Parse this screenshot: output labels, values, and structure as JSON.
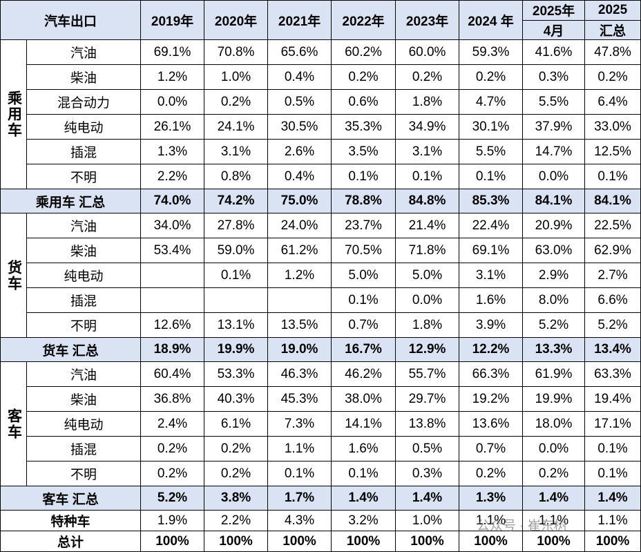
{
  "table": {
    "header": [
      "汽车出口",
      "2019年",
      "2020年",
      "2021年",
      "2022年",
      "2023年",
      "2024 年",
      [
        "2025年",
        "4月"
      ],
      [
        "2025",
        "汇总"
      ]
    ],
    "groups": [
      {
        "label": "乘用车",
        "rows": [
          {
            "name": "汽油",
            "values": [
              "69.1%",
              "70.8%",
              "65.6%",
              "60.2%",
              "60.0%",
              "59.3%",
              "41.6%",
              "47.8%"
            ]
          },
          {
            "name": "柴油",
            "values": [
              "1.2%",
              "1.0%",
              "0.4%",
              "0.2%",
              "0.2%",
              "0.2%",
              "0.3%",
              "0.2%"
            ]
          },
          {
            "name": "混合动力",
            "values": [
              "0.0%",
              "0.2%",
              "0.5%",
              "0.6%",
              "1.8%",
              "4.7%",
              "5.5%",
              "6.4%"
            ]
          },
          {
            "name": "纯电动",
            "values": [
              "26.1%",
              "24.1%",
              "30.5%",
              "35.3%",
              "34.9%",
              "30.1%",
              "37.9%",
              "33.0%"
            ]
          },
          {
            "name": "插混",
            "values": [
              "1.3%",
              "3.1%",
              "2.6%",
              "3.5%",
              "3.1%",
              "5.5%",
              "14.7%",
              "12.5%"
            ]
          },
          {
            "name": "不明",
            "values": [
              "2.2%",
              "0.8%",
              "0.4%",
              "0.1%",
              "0.1%",
              "0.1%",
              "0.0%",
              "0.1%"
            ]
          }
        ],
        "total": {
          "label": "乘用车 汇总",
          "values": [
            "74.0%",
            "74.2%",
            "75.0%",
            "78.8%",
            "84.8%",
            "85.3%",
            "84.1%",
            "84.1%"
          ]
        }
      },
      {
        "label": "货车",
        "rows": [
          {
            "name": "汽油",
            "values": [
              "34.0%",
              "27.8%",
              "24.0%",
              "23.7%",
              "21.4%",
              "22.4%",
              "20.9%",
              "22.5%"
            ]
          },
          {
            "name": "柴油",
            "values": [
              "53.4%",
              "59.0%",
              "61.2%",
              "70.5%",
              "71.8%",
              "69.1%",
              "63.0%",
              "62.9%"
            ]
          },
          {
            "name": "纯电动",
            "values": [
              null,
              "0.1%",
              "1.2%",
              "5.0%",
              "5.0%",
              "3.1%",
              "2.9%",
              "2.7%"
            ]
          },
          {
            "name": "插混",
            "values": [
              null,
              null,
              null,
              "0.1%",
              "0.0%",
              "1.6%",
              "8.0%",
              "6.6%"
            ]
          },
          {
            "name": "不明",
            "values": [
              "12.6%",
              "13.1%",
              "13.5%",
              "0.7%",
              "1.8%",
              "3.9%",
              "5.2%",
              "5.2%"
            ]
          }
        ],
        "total": {
          "label": "货车 汇总",
          "values": [
            "18.9%",
            "19.9%",
            "19.0%",
            "16.7%",
            "12.9%",
            "12.2%",
            "13.3%",
            "13.4%"
          ]
        }
      },
      {
        "label": "客车",
        "rows": [
          {
            "name": "汽油",
            "values": [
              "60.4%",
              "53.3%",
              "46.3%",
              "46.2%",
              "55.7%",
              "66.3%",
              "61.9%",
              "63.3%"
            ]
          },
          {
            "name": "柴油",
            "values": [
              "36.8%",
              "40.3%",
              "45.3%",
              "38.0%",
              "29.7%",
              "19.2%",
              "19.9%",
              "19.4%"
            ]
          },
          {
            "name": "纯电动",
            "values": [
              "2.4%",
              "6.1%",
              "7.3%",
              "14.1%",
              "13.8%",
              "13.6%",
              "18.0%",
              "17.1%"
            ]
          },
          {
            "name": "插混",
            "values": [
              "0.2%",
              "0.2%",
              "1.1%",
              "1.6%",
              "0.5%",
              "0.7%",
              "0.0%",
              "0.1%"
            ]
          },
          {
            "name": "不明",
            "values": [
              "0.2%",
              "0.2%",
              "0.1%",
              "0.1%",
              "0.3%",
              "0.2%",
              "0.2%",
              "0.1%"
            ]
          }
        ],
        "total": {
          "label": "客车 汇总",
          "values": [
            "5.2%",
            "3.8%",
            "1.7%",
            "1.4%",
            "1.4%",
            "1.3%",
            "1.4%",
            "1.4%"
          ]
        }
      }
    ],
    "special": {
      "label": "特种车",
      "values": [
        "1.9%",
        "2.2%",
        "4.3%",
        "3.2%",
        "1.0%",
        "1.1%",
        "1.1%",
        "1.1%"
      ]
    },
    "grand_total": {
      "label": "总计",
      "values": [
        "100%",
        "100%",
        "100%",
        "100%",
        "100%",
        "100%",
        "100%",
        "100%"
      ]
    },
    "watermark": "公众号 · 崔东树"
  }
}
